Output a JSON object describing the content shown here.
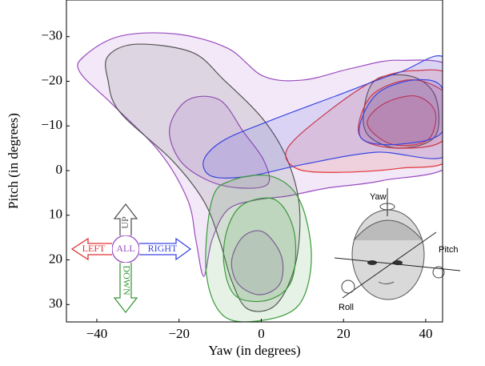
{
  "chart_data": {
    "type": "contour",
    "x_label": "Yaw (in degrees)",
    "y_label": "Pitch (in degrees)",
    "xlim": [
      -47.4,
      44.1
    ],
    "ylim": [
      -38.2,
      33.9
    ],
    "y_inverted": true,
    "xticks": [
      {
        "value": -40,
        "label": "−40"
      },
      {
        "value": -20,
        "label": "−20"
      },
      0,
      20,
      40
    ],
    "yticks": [
      {
        "value": -30,
        "label": "−30"
      },
      {
        "value": -20,
        "label": "−20"
      },
      {
        "value": -10,
        "label": "−10"
      },
      0,
      10,
      20,
      30
    ],
    "series": [
      {
        "name": "ALL",
        "color": "#9b4dbf",
        "contours": [
          {
            "x": [
              -43.1,
              -34.4,
              -20.8,
              -8.2,
              0.6,
              10.3,
              22.0,
              33.6,
              47.2,
              47.2,
              29.7,
              16.1,
              6.4,
              -1.4,
              -8.2,
              -12.0,
              -14.0,
              -15.9,
              -17.9,
              -24.7,
              -36.3,
              -44.1
            ],
            "y": [
              -25.6,
              -30.1,
              -30.6,
              -27.4,
              -21.1,
              -20.3,
              -22.9,
              -24.7,
              -22.0,
              -2.3,
              2.2,
              3.9,
              5.7,
              6.6,
              8.8,
              15.6,
              23.7,
              15.6,
              6.6,
              -4.1,
              -14.9,
              -22.0
            ]
          },
          {
            "x": [
              -22.3,
              -17.9,
              -10.1,
              -4.3,
              0.6,
              1.6,
              -5.2,
              -13.0,
              -19.8
            ],
            "y": [
              -9.5,
              -15.8,
              -15.8,
              -8.6,
              -2.3,
              3.0,
              3.9,
              2.2,
              -2.3
            ]
          },
          {
            "x": [
              -7.2,
              -4.3,
              0.6,
              4.9,
              4.5,
              -0.4,
              -5.6
            ],
            "y": [
              20.1,
              14.7,
              13.8,
              19.2,
              25.4,
              27.8,
              25.4
            ]
          }
        ]
      },
      {
        "name": "UP",
        "color": "#555555",
        "contours": [
          {
            "x": [
              -37.3,
              -30.5,
              -16.9,
              -9.1,
              0.6,
              6.4,
              9.3,
              8.3,
              3.5,
              -3.3,
              -7.2,
              -10.1,
              -14.0,
              -21.7,
              -34.4,
              -37.3
            ],
            "y": [
              -25.6,
              -28.3,
              -26.5,
              -20.3,
              -11.3,
              -2.3,
              8.4,
              21.0,
              30.1,
              31.0,
              24.7,
              15.8,
              6.8,
              -2.3,
              -13.1,
              -20.3
            ]
          },
          {
            "x": [
              24.9,
              27.8,
              36.5,
              42.3,
              42.3,
              33.6,
              26.2
            ],
            "y": [
              -13.1,
              -20.3,
              -21.1,
              -16.7,
              -7.7,
              -5.0,
              -7.7
            ]
          }
        ]
      },
      {
        "name": "LEFT",
        "color": "#e03535",
        "contours": [
          {
            "x": [
              6.4,
              16.1,
              27.8,
              37.5,
              46.2,
              46.2,
              33.6,
              18.1,
              8.5
            ],
            "y": [
              -5.0,
              -13.1,
              -20.3,
              -22.4,
              -20.3,
              -3.2,
              -0.5,
              0.4,
              -0.5
            ]
          },
          {
            "x": [
              23.9,
              27.8,
              37.5,
              46.2,
              44.3,
              33.6,
              24.9
            ],
            "y": [
              -11.3,
              -17.6,
              -20.3,
              -15.8,
              -6.8,
              -5.0,
              -6.8
            ]
          },
          {
            "x": [
              25.8,
              29.7,
              37.5,
              42.3,
              40.4,
              31.7
            ],
            "y": [
              -10.4,
              -14.9,
              -16.7,
              -13.1,
              -6.8,
              -5.9
            ]
          }
        ]
      },
      {
        "name": "RIGHT",
        "color": "#3a46e0",
        "contours": [
          {
            "x": [
              -14.0,
              -9.1,
              2.5,
              18.1,
              33.6,
              45.2,
              46.2,
              27.8,
              10.3,
              -3.3,
              -12.0
            ],
            "y": [
              -2.3,
              -6.8,
              -11.3,
              -16.7,
              -22.0,
              -24.7,
              -4.1,
              -4.1,
              -1.4,
              1.3,
              1.3
            ]
          },
          {
            "x": [
              24.3,
              28.7,
              37.5,
              44.0,
              44.0,
              33.6,
              24.9
            ],
            "y": [
              -11.3,
              -17.6,
              -20.3,
              -18.5,
              -8.6,
              -5.9,
              -6.8
            ]
          }
        ]
      },
      {
        "name": "DOWN",
        "color": "#3a9a3a",
        "contours": [
          {
            "x": [
              -12.0,
              -7.2,
              2.5,
              9.3,
              12.2,
              9.3,
              0.6,
              -9.1,
              -13.4
            ],
            "y": [
              6.6,
              2.2,
              1.3,
              6.6,
              19.2,
              29.9,
              33.5,
              32.6,
              22.8
            ]
          },
          {
            "x": [
              -8.2,
              -4.3,
              3.5,
              8.0,
              7.4,
              1.6,
              -6.2,
              -9.1
            ],
            "y": [
              12.9,
              7.5,
              6.6,
              13.8,
              24.6,
              29.0,
              28.1,
              20.9
            ]
          }
        ]
      }
    ],
    "face_labels": {
      "yaw": "Yaw",
      "pitch": "Pitch",
      "roll": "Roll"
    }
  }
}
